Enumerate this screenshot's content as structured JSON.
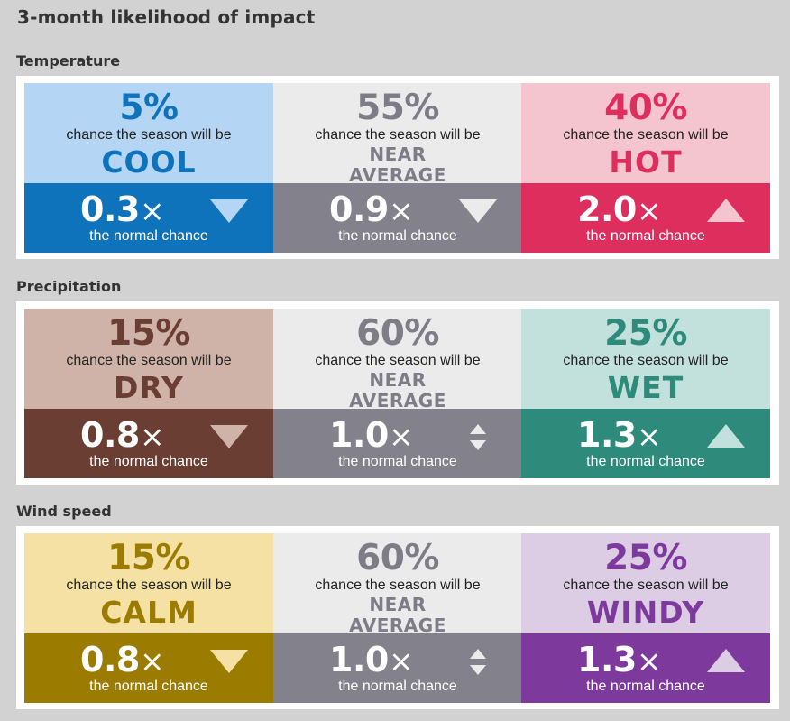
{
  "title": "3-month likelihood of impact",
  "chance_phrase": "chance the season will be",
  "normal_phrase": "the normal chance",
  "times_symbol": "×",
  "sections": [
    {
      "name": "Temperature",
      "cells": [
        {
          "percent": "5%",
          "category": "COOL",
          "multiplier": "0.3",
          "trend": "down",
          "top_bg": "#b4d5f3",
          "text_color": "#0f73bb",
          "bottom_bg": "#0f73bb",
          "arrow_color": "#b4d5f3"
        },
        {
          "percent": "55%",
          "category": "NEAR AVERAGE",
          "multiplier": "0.9",
          "trend": "down",
          "top_bg": "#ebebeb",
          "text_color": "#7e7c87",
          "bottom_bg": "#83818c",
          "arrow_color": "#ebebeb"
        },
        {
          "percent": "40%",
          "category": "HOT",
          "multiplier": "2.0",
          "trend": "up",
          "top_bg": "#f5c5cf",
          "text_color": "#de2e5d",
          "bottom_bg": "#de2e5d",
          "arrow_color": "#f5c5cf"
        }
      ]
    },
    {
      "name": "Precipitation",
      "cells": [
        {
          "percent": "15%",
          "category": "DRY",
          "multiplier": "0.8",
          "trend": "down",
          "top_bg": "#d0b3a8",
          "text_color": "#6a3e32",
          "bottom_bg": "#6a3e32",
          "arrow_color": "#d0b3a8"
        },
        {
          "percent": "60%",
          "category": "NEAR AVERAGE",
          "multiplier": "1.0",
          "trend": "updown",
          "top_bg": "#ebebeb",
          "text_color": "#7e7c87",
          "bottom_bg": "#83818c",
          "arrow_color": "#ebebeb"
        },
        {
          "percent": "25%",
          "category": "WET",
          "multiplier": "1.3",
          "trend": "up",
          "top_bg": "#c3e1dc",
          "text_color": "#2e8a7b",
          "bottom_bg": "#2e8a7b",
          "arrow_color": "#c3e1dc"
        }
      ]
    },
    {
      "name": "Wind speed",
      "cells": [
        {
          "percent": "15%",
          "category": "CALM",
          "multiplier": "0.8",
          "trend": "down",
          "top_bg": "#f5e1a3",
          "text_color": "#9b7c00",
          "bottom_bg": "#9b7c00",
          "arrow_color": "#f5e1a3"
        },
        {
          "percent": "60%",
          "category": "NEAR AVERAGE",
          "multiplier": "1.0",
          "trend": "updown",
          "top_bg": "#ebebeb",
          "text_color": "#7e7c87",
          "bottom_bg": "#83818c",
          "arrow_color": "#ebebeb"
        },
        {
          "percent": "25%",
          "category": "WINDY",
          "multiplier": "1.3",
          "trend": "up",
          "top_bg": "#dccde5",
          "text_color": "#7d3a9c",
          "bottom_bg": "#7d3a9c",
          "arrow_color": "#dccde5"
        }
      ]
    }
  ]
}
